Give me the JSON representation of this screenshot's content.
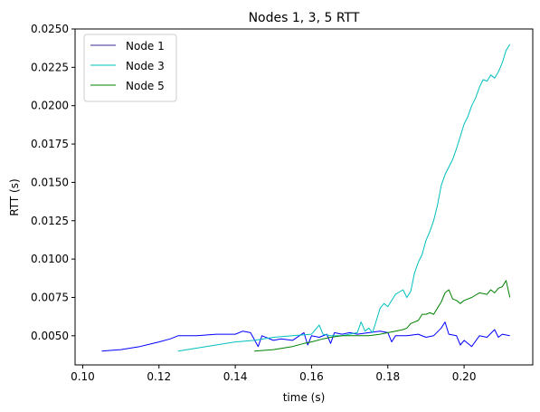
{
  "chart_data": {
    "type": "line",
    "title": "Nodes 1, 3, 5 RTT",
    "xlabel": "time (s)",
    "ylabel": "RTT (s)",
    "xlim": [
      0.098,
      0.218
    ],
    "ylim": [
      0.0031,
      0.025
    ],
    "x_ticks": [
      0.1,
      0.12,
      0.14,
      0.16,
      0.18,
      0.2
    ],
    "x_tick_labels": [
      "0.10",
      "0.12",
      "0.14",
      "0.16",
      "0.18",
      "0.20"
    ],
    "y_ticks": [
      0.005,
      0.0075,
      0.01,
      0.0125,
      0.015,
      0.0175,
      0.02,
      0.0225,
      0.025
    ],
    "y_tick_labels": [
      "0.0050",
      "0.0075",
      "0.0100",
      "0.0125",
      "0.0150",
      "0.0175",
      "0.0200",
      "0.0225",
      "0.0250"
    ],
    "grid": false,
    "legend_position": "top-left",
    "series": [
      {
        "name": "Node 1",
        "color": "#0000ff",
        "legend_color": "#3a2a8c",
        "points": [
          [
            0.105,
            0.004
          ],
          [
            0.11,
            0.0041
          ],
          [
            0.115,
            0.0043
          ],
          [
            0.12,
            0.0046
          ],
          [
            0.123,
            0.0048
          ],
          [
            0.125,
            0.005
          ],
          [
            0.13,
            0.005
          ],
          [
            0.135,
            0.0051
          ],
          [
            0.14,
            0.0051
          ],
          [
            0.142,
            0.0053
          ],
          [
            0.144,
            0.0052
          ],
          [
            0.146,
            0.0043
          ],
          [
            0.147,
            0.005
          ],
          [
            0.15,
            0.0047
          ],
          [
            0.152,
            0.0048
          ],
          [
            0.155,
            0.0047
          ],
          [
            0.158,
            0.0052
          ],
          [
            0.159,
            0.0044
          ],
          [
            0.16,
            0.005
          ],
          [
            0.162,
            0.0049
          ],
          [
            0.164,
            0.0051
          ],
          [
            0.165,
            0.0045
          ],
          [
            0.166,
            0.0052
          ],
          [
            0.168,
            0.0051
          ],
          [
            0.17,
            0.0052
          ],
          [
            0.172,
            0.0051
          ],
          [
            0.175,
            0.0052
          ],
          [
            0.178,
            0.0053
          ],
          [
            0.18,
            0.0052
          ],
          [
            0.181,
            0.0046
          ],
          [
            0.182,
            0.005
          ],
          [
            0.185,
            0.005
          ],
          [
            0.188,
            0.0051
          ],
          [
            0.19,
            0.0049
          ],
          [
            0.192,
            0.005
          ],
          [
            0.194,
            0.0055
          ],
          [
            0.195,
            0.0059
          ],
          [
            0.196,
            0.0051
          ],
          [
            0.198,
            0.005
          ],
          [
            0.199,
            0.0044
          ],
          [
            0.2,
            0.0047
          ],
          [
            0.202,
            0.0043
          ],
          [
            0.204,
            0.005
          ],
          [
            0.206,
            0.0049
          ],
          [
            0.208,
            0.0054
          ],
          [
            0.209,
            0.0049
          ],
          [
            0.21,
            0.0051
          ],
          [
            0.212,
            0.005
          ]
        ]
      },
      {
        "name": "Node 3",
        "color": "#00bfbf",
        "points": [
          [
            0.125,
            0.004
          ],
          [
            0.13,
            0.0042
          ],
          [
            0.135,
            0.0044
          ],
          [
            0.14,
            0.0046
          ],
          [
            0.145,
            0.0047
          ],
          [
            0.15,
            0.0049
          ],
          [
            0.155,
            0.005
          ],
          [
            0.16,
            0.0051
          ],
          [
            0.162,
            0.0057
          ],
          [
            0.163,
            0.0051
          ],
          [
            0.165,
            0.005
          ],
          [
            0.168,
            0.005
          ],
          [
            0.17,
            0.0051
          ],
          [
            0.172,
            0.0052
          ],
          [
            0.173,
            0.0059
          ],
          [
            0.174,
            0.0053
          ],
          [
            0.175,
            0.0055
          ],
          [
            0.176,
            0.0052
          ],
          [
            0.177,
            0.006
          ],
          [
            0.178,
            0.0068
          ],
          [
            0.179,
            0.0071
          ],
          [
            0.18,
            0.0069
          ],
          [
            0.182,
            0.0077
          ],
          [
            0.184,
            0.008
          ],
          [
            0.185,
            0.0075
          ],
          [
            0.186,
            0.0079
          ],
          [
            0.187,
            0.0091
          ],
          [
            0.188,
            0.0098
          ],
          [
            0.189,
            0.0103
          ],
          [
            0.19,
            0.0112
          ],
          [
            0.191,
            0.0118
          ],
          [
            0.192,
            0.0125
          ],
          [
            0.193,
            0.0135
          ],
          [
            0.194,
            0.0148
          ],
          [
            0.195,
            0.0155
          ],
          [
            0.196,
            0.016
          ],
          [
            0.197,
            0.0165
          ],
          [
            0.198,
            0.0172
          ],
          [
            0.199,
            0.018
          ],
          [
            0.2,
            0.0188
          ],
          [
            0.201,
            0.0193
          ],
          [
            0.202,
            0.02
          ],
          [
            0.203,
            0.0205
          ],
          [
            0.204,
            0.0212
          ],
          [
            0.205,
            0.0217
          ],
          [
            0.206,
            0.0216
          ],
          [
            0.207,
            0.022
          ],
          [
            0.208,
            0.0218
          ],
          [
            0.209,
            0.0222
          ],
          [
            0.21,
            0.0228
          ],
          [
            0.211,
            0.0236
          ],
          [
            0.212,
            0.024
          ]
        ]
      },
      {
        "name": "Node 5",
        "color": "#008000",
        "points": [
          [
            0.145,
            0.004
          ],
          [
            0.15,
            0.0041
          ],
          [
            0.155,
            0.0043
          ],
          [
            0.158,
            0.0045
          ],
          [
            0.16,
            0.0046
          ],
          [
            0.163,
            0.0048
          ],
          [
            0.165,
            0.0049
          ],
          [
            0.168,
            0.005
          ],
          [
            0.17,
            0.005
          ],
          [
            0.172,
            0.005
          ],
          [
            0.175,
            0.005
          ],
          [
            0.178,
            0.0051
          ],
          [
            0.18,
            0.0052
          ],
          [
            0.182,
            0.0053
          ],
          [
            0.184,
            0.0054
          ],
          [
            0.185,
            0.0055
          ],
          [
            0.186,
            0.0058
          ],
          [
            0.188,
            0.006
          ],
          [
            0.189,
            0.0064
          ],
          [
            0.19,
            0.0064
          ],
          [
            0.191,
            0.0065
          ],
          [
            0.192,
            0.0064
          ],
          [
            0.193,
            0.0068
          ],
          [
            0.194,
            0.0072
          ],
          [
            0.195,
            0.0078
          ],
          [
            0.196,
            0.008
          ],
          [
            0.197,
            0.0074
          ],
          [
            0.198,
            0.0073
          ],
          [
            0.199,
            0.0071
          ],
          [
            0.2,
            0.0073
          ],
          [
            0.202,
            0.0075
          ],
          [
            0.204,
            0.0078
          ],
          [
            0.206,
            0.0077
          ],
          [
            0.207,
            0.008
          ],
          [
            0.208,
            0.0078
          ],
          [
            0.209,
            0.0081
          ],
          [
            0.21,
            0.0082
          ],
          [
            0.211,
            0.0086
          ],
          [
            0.212,
            0.0075
          ]
        ]
      }
    ]
  }
}
